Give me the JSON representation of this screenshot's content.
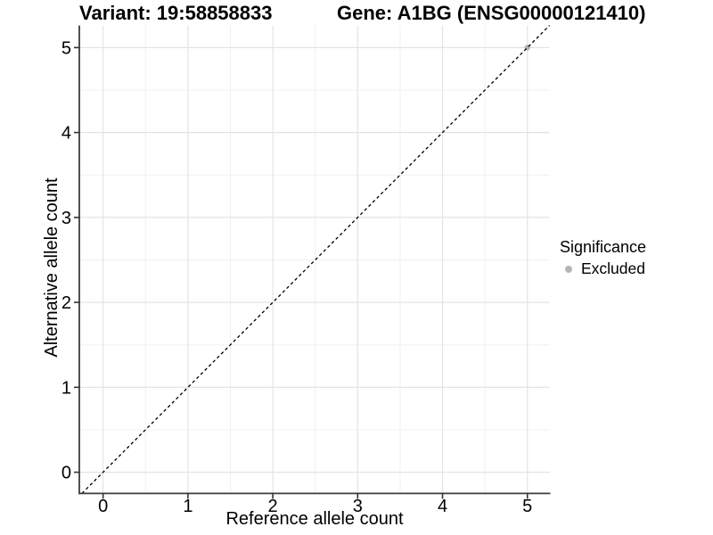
{
  "chart_data": {
    "type": "scatter",
    "title_left": "Variant: 19:58858833",
    "title_right": "Gene: A1BG (ENSG00000121410)",
    "xlabel": "Reference allele count",
    "ylabel": "Alternative allele count",
    "xlim": [
      -0.28,
      5.26
    ],
    "ylim": [
      -0.25,
      5.26
    ],
    "x_ticks": [
      0,
      1,
      2,
      3,
      4,
      5
    ],
    "y_ticks": [
      0,
      1,
      2,
      3,
      4,
      5
    ],
    "minor_x": [
      0.5,
      1.5,
      2.5,
      3.5,
      4.5
    ],
    "minor_y": [
      0.5,
      1.5,
      2.5,
      3.5,
      4.5
    ],
    "grid": true,
    "points": [
      {
        "x": 5,
        "y": 5,
        "significance": "Excluded",
        "color": "#b5b5b5"
      }
    ],
    "reference_line": {
      "type": "identity",
      "slope": 1,
      "intercept": 0,
      "style": "dashed",
      "color": "#000000"
    },
    "legend": {
      "title": "Significance",
      "position": "right",
      "items": [
        {
          "label": "Excluded",
          "color": "#b5b5b5"
        }
      ]
    },
    "colors": {
      "background": "#ffffff",
      "grid_major": "#e4e4e4",
      "grid_minor": "#f0f0f0",
      "axis_line": "#3c3c3c",
      "tick": "#333333",
      "text": "#000000"
    }
  }
}
